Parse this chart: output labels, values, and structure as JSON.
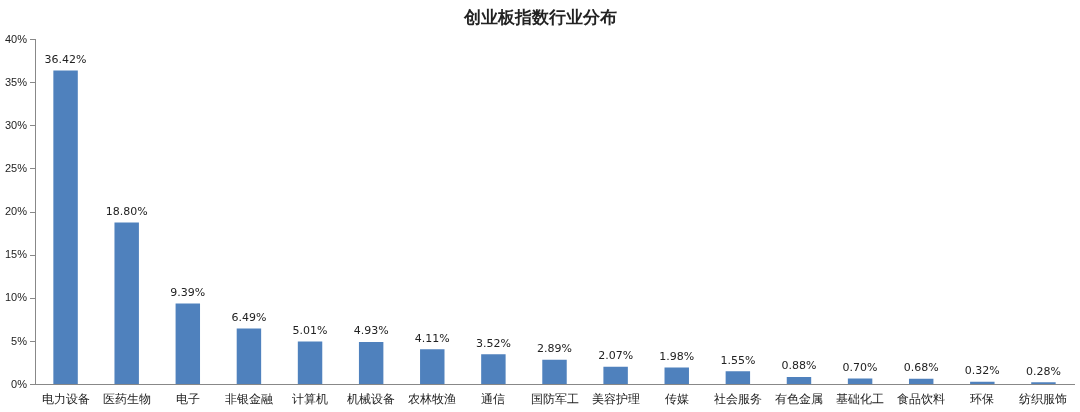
{
  "chart_data": {
    "type": "bar",
    "title": "创业板指数行业分布",
    "categories": [
      "电力设备",
      "医药生物",
      "电子",
      "非银金融",
      "计算机",
      "机械设备",
      "农林牧渔",
      "通信",
      "国防军工",
      "美容护理",
      "传媒",
      "社会服务",
      "有色金属",
      "基础化工",
      "食品饮料",
      "环保",
      "纺织服饰"
    ],
    "values": [
      36.42,
      18.8,
      9.39,
      6.49,
      5.01,
      4.93,
      4.11,
      3.52,
      2.89,
      2.07,
      1.98,
      1.55,
      0.88,
      0.7,
      0.68,
      0.32,
      0.28
    ],
    "value_labels": [
      "36.42%",
      "18.80%",
      "9.39%",
      "6.49%",
      "5.01%",
      "4.93%",
      "4.11%",
      "3.52%",
      "2.89%",
      "2.07%",
      "1.98%",
      "1.55%",
      "0.88%",
      "0.70%",
      "0.68%",
      "0.32%",
      "0.28%"
    ],
    "color": "#4f81bd",
    "ylim": [
      0,
      40
    ],
    "yticks": [
      {
        "value": 0,
        "label": "0%"
      },
      {
        "value": 5,
        "label": "5%"
      },
      {
        "value": 10,
        "label": "10%"
      },
      {
        "value": 15,
        "label": "15%"
      },
      {
        "value": 20,
        "label": "20%"
      },
      {
        "value": 25,
        "label": "25%"
      },
      {
        "value": 30,
        "label": "30%"
      },
      {
        "value": 35,
        "label": "35%"
      },
      {
        "value": 40,
        "label": "40%"
      }
    ],
    "grid": false,
    "legend": false
  }
}
